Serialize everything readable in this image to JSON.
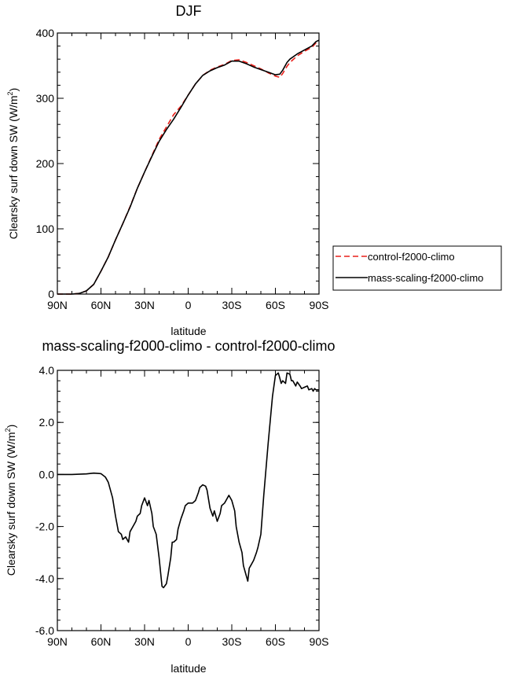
{
  "chart_data": [
    {
      "type": "line",
      "title": "DJF",
      "xlabel": "latitude",
      "ylabel": "Clearsky surf down SW (W/m",
      "ylabel_sup": "2",
      "ylabel_close": ")",
      "xlim": [
        90,
        -90
      ],
      "ylim": [
        0,
        400
      ],
      "x_ticks": [
        90,
        60,
        30,
        0,
        -30,
        -60,
        -90
      ],
      "x_tick_labels": [
        "90N",
        "60N",
        "30N",
        "0",
        "30S",
        "60S",
        "90S"
      ],
      "y_ticks": [
        0,
        100,
        200,
        300,
        400
      ],
      "y_tick_labels": [
        "0",
        "100",
        "200",
        "300",
        "400"
      ],
      "grid": false,
      "legend_placement": "right",
      "series": [
        {
          "name": "control-f2000-climo",
          "color": "#e8201a",
          "dash": "dashed",
          "x": [
            90,
            80,
            75,
            70,
            65,
            60,
            55,
            50,
            45,
            40,
            35,
            30,
            25,
            20,
            15,
            10,
            5,
            0,
            -5,
            -10,
            -15,
            -20,
            -25,
            -30,
            -35,
            -40,
            -45,
            -50,
            -55,
            -60,
            -63,
            -65,
            -68,
            -70,
            -75,
            -80,
            -85,
            -88,
            -90
          ],
          "y": [
            0,
            0,
            1,
            5,
            15,
            35,
            57,
            83,
            108,
            134,
            162,
            187,
            212,
            237,
            256,
            275,
            288,
            305,
            322,
            335,
            343,
            348,
            352,
            358,
            359,
            355,
            350,
            345,
            339,
            334,
            332,
            338,
            349,
            355,
            365,
            372,
            378,
            385,
            387
          ]
        },
        {
          "name": "mass-scaling-f2000-climo",
          "color": "#000000",
          "dash": "solid",
          "x": [
            90,
            80,
            75,
            70,
            65,
            60,
            55,
            50,
            45,
            40,
            35,
            30,
            25,
            20,
            15,
            10,
            5,
            0,
            -5,
            -10,
            -15,
            -20,
            -25,
            -30,
            -35,
            -40,
            -45,
            -50,
            -55,
            -60,
            -63,
            -65,
            -68,
            -70,
            -75,
            -80,
            -85,
            -88,
            -90
          ],
          "y": [
            0,
            0,
            1,
            5,
            15,
            35,
            57,
            83,
            108,
            133,
            162,
            187,
            211,
            234,
            252,
            268,
            286,
            305,
            322,
            335,
            342,
            347,
            351,
            357,
            357,
            353,
            348,
            344,
            340,
            336,
            337,
            343,
            355,
            360,
            368,
            374,
            380,
            387,
            389
          ]
        }
      ]
    },
    {
      "type": "line",
      "title": "mass-scaling-f2000-climo - control-f2000-climo",
      "xlabel": "latitude",
      "ylabel": "Clearsky surf down SW (W/m",
      "ylabel_sup": "2",
      "ylabel_close": ")",
      "xlim": [
        90,
        -90
      ],
      "ylim": [
        -6.0,
        4.0
      ],
      "x_ticks": [
        90,
        60,
        30,
        0,
        -30,
        -60,
        -90
      ],
      "x_tick_labels": [
        "90N",
        "60N",
        "30N",
        "0",
        "30S",
        "60S",
        "90S"
      ],
      "y_ticks": [
        -6.0,
        -4.0,
        -2.0,
        0.0,
        2.0,
        4.0
      ],
      "y_tick_labels": [
        "-6.0",
        "-4.0",
        "-2.0",
        "0.0",
        "2.0",
        "4.0"
      ],
      "grid": false,
      "series": [
        {
          "color": "#000000",
          "dash": "solid",
          "x": [
            90,
            80,
            70,
            65,
            60,
            57,
            55,
            52,
            50,
            48,
            46,
            45,
            43,
            41,
            40,
            38,
            36,
            35,
            33,
            32,
            30,
            28,
            27,
            25,
            24,
            22,
            20,
            18,
            17,
            15,
            14,
            12,
            11,
            10,
            8,
            7,
            5,
            3,
            2,
            0,
            -3,
            -5,
            -7,
            -8,
            -10,
            -12,
            -13,
            -15,
            -17,
            -18,
            -20,
            -22,
            -23,
            -25,
            -27,
            -28,
            -30,
            -32,
            -33,
            -35,
            -37,
            -38,
            -40,
            -41,
            -42,
            -43,
            -45,
            -47,
            -48,
            -50,
            -52,
            -55,
            -58,
            -60,
            -62,
            -63,
            -64,
            -65,
            -67,
            -68,
            -70,
            -71,
            -72,
            -74,
            -75,
            -77,
            -78,
            -80,
            -82,
            -83,
            -85,
            -86,
            -87,
            -88,
            -90
          ],
          "y": [
            0,
            0,
            0.02,
            0.05,
            0.03,
            -0.1,
            -0.3,
            -0.9,
            -1.6,
            -2.2,
            -2.3,
            -2.5,
            -2.4,
            -2.6,
            -2.2,
            -2.0,
            -1.8,
            -1.6,
            -1.5,
            -1.2,
            -0.9,
            -1.2,
            -1.0,
            -1.5,
            -2.0,
            -2.3,
            -3.2,
            -4.3,
            -4.35,
            -4.2,
            -3.9,
            -3.2,
            -2.6,
            -2.6,
            -2.5,
            -2.1,
            -1.7,
            -1.4,
            -1.2,
            -1.1,
            -1.1,
            -1.0,
            -0.7,
            -0.5,
            -0.4,
            -0.45,
            -0.6,
            -1.3,
            -1.6,
            -1.4,
            -1.8,
            -1.5,
            -1.2,
            -1.1,
            -0.9,
            -0.8,
            -1.0,
            -1.4,
            -2.0,
            -2.6,
            -3.0,
            -3.5,
            -3.9,
            -4.1,
            -3.6,
            -3.5,
            -3.3,
            -3.0,
            -2.8,
            -2.3,
            -0.8,
            1.2,
            3.0,
            3.8,
            3.9,
            3.7,
            3.5,
            3.6,
            3.5,
            3.9,
            3.85,
            3.6,
            3.6,
            3.4,
            3.55,
            3.4,
            3.3,
            3.35,
            3.4,
            3.25,
            3.3,
            3.2,
            3.3,
            3.25,
            3.25
          ]
        }
      ]
    }
  ]
}
